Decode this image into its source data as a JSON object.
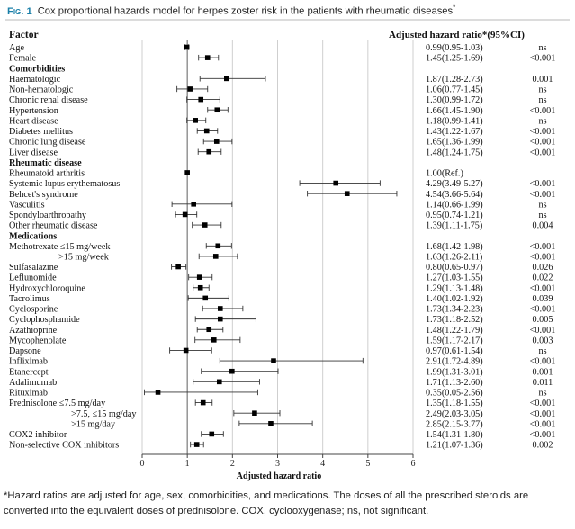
{
  "figure": {
    "label": "Fig. 1",
    "title": "Cox proportional hazards model for herpes zoster risk in the patients with rheumatic diseases",
    "title_mark": "*"
  },
  "headers": {
    "factor": "Factor",
    "hr": "Adjusted hazard ratio*(95%CI)",
    "p": "p-value"
  },
  "footnote": "*Hazard ratios are adjusted for age, sex, comorbidities, and medications. The doses of all the prescribed steroids are converted into the equivalent doses of prednisolone. COX, cyclooxygenase; ns, not significant.",
  "chart_data": {
    "type": "forest",
    "xlabel": "Adjusted hazard ratio",
    "xlim": [
      0,
      6
    ],
    "xticks": [
      0,
      1,
      2,
      3,
      4,
      5,
      6
    ],
    "reference_line": 1,
    "grid": "vertical",
    "rows": [
      {
        "label": "Age",
        "indent": 0,
        "hr": 0.99,
        "lo": 0.95,
        "hi": 1.03,
        "text": "0.99(0.95-1.03)",
        "p": "ns"
      },
      {
        "label": "Female",
        "indent": 0,
        "hr": 1.45,
        "lo": 1.25,
        "hi": 1.69,
        "text": "1.45(1.25-1.69)",
        "p": "<0.001"
      },
      {
        "label": "Comorbidities",
        "header": true
      },
      {
        "label": "Haematologic",
        "indent": 0,
        "hr": 1.87,
        "lo": 1.28,
        "hi": 2.73,
        "text": "1.87(1.28-2.73)",
        "p": "0.001"
      },
      {
        "label": "Non-hematologic",
        "indent": 0,
        "hr": 1.06,
        "lo": 0.77,
        "hi": 1.45,
        "text": "1.06(0.77-1.45)",
        "p": "ns"
      },
      {
        "label": "Chronic renal disease",
        "indent": 0,
        "hr": 1.3,
        "lo": 0.99,
        "hi": 1.72,
        "text": "1.30(0.99-1.72)",
        "p": "ns"
      },
      {
        "label": "Hypertension",
        "indent": 0,
        "hr": 1.66,
        "lo": 1.45,
        "hi": 1.9,
        "text": "1.66(1.45-1.90)",
        "p": "<0.001"
      },
      {
        "label": "Heart disease",
        "indent": 0,
        "hr": 1.18,
        "lo": 0.99,
        "hi": 1.41,
        "text": "1.18(0.99-1.41)",
        "p": "ns"
      },
      {
        "label": "Diabetes mellitus",
        "indent": 0,
        "hr": 1.43,
        "lo": 1.22,
        "hi": 1.67,
        "text": "1.43(1.22-1.67)",
        "p": "<0.001"
      },
      {
        "label": "Chronic lung disease",
        "indent": 0,
        "hr": 1.65,
        "lo": 1.36,
        "hi": 1.99,
        "text": "1.65(1.36-1.99)",
        "p": "<0.001"
      },
      {
        "label": "Liver disease",
        "indent": 0,
        "hr": 1.48,
        "lo": 1.24,
        "hi": 1.75,
        "text": "1.48(1.24-1.75)",
        "p": "<0.001"
      },
      {
        "label": "Rheumatic disease",
        "header": true
      },
      {
        "label": "Rheumatoid arthritis",
        "indent": 0,
        "hr": 1.0,
        "lo": 1.0,
        "hi": 1.0,
        "text": "1.00(Ref.)",
        "p": ""
      },
      {
        "label": "Systemic lupus erythematosus",
        "indent": 0,
        "hr": 4.29,
        "lo": 3.49,
        "hi": 5.27,
        "text": "4.29(3.49-5.27)",
        "p": "<0.001"
      },
      {
        "label": "Behcet's syndrome",
        "indent": 0,
        "hr": 4.54,
        "lo": 3.66,
        "hi": 5.64,
        "text": "4.54(3.66-5.64)",
        "p": "<0.001"
      },
      {
        "label": "Vasculitis",
        "indent": 0,
        "hr": 1.14,
        "lo": 0.66,
        "hi": 1.99,
        "text": "1.14(0.66-1.99)",
        "p": "ns"
      },
      {
        "label": "Spondyloarthropathy",
        "indent": 0,
        "hr": 0.95,
        "lo": 0.74,
        "hi": 1.21,
        "text": "0.95(0.74-1.21)",
        "p": "ns"
      },
      {
        "label": "Other rheumatic disease",
        "indent": 0,
        "hr": 1.39,
        "lo": 1.11,
        "hi": 1.75,
        "text": "1.39(1.11-1.75)",
        "p": "0.004"
      },
      {
        "label": "Medications",
        "header": true
      },
      {
        "label": "Methotrexate ≤15 mg/week",
        "indent": 0,
        "hr": 1.68,
        "lo": 1.42,
        "hi": 1.98,
        "text": "1.68(1.42-1.98)",
        "p": "<0.001"
      },
      {
        "label": ">15 mg/week",
        "indent": 1,
        "hr": 1.63,
        "lo": 1.26,
        "hi": 2.11,
        "text": "1.63(1.26-2.11)",
        "p": "<0.001"
      },
      {
        "label": "Sulfasalazine",
        "indent": 0,
        "hr": 0.8,
        "lo": 0.65,
        "hi": 0.97,
        "text": "0.80(0.65-0.97)",
        "p": "0.026"
      },
      {
        "label": "Leflunomide",
        "indent": 0,
        "hr": 1.27,
        "lo": 1.03,
        "hi": 1.55,
        "text": "1.27(1.03-1.55)",
        "p": "0.022"
      },
      {
        "label": "Hydroxychloroquine",
        "indent": 0,
        "hr": 1.29,
        "lo": 1.13,
        "hi": 1.48,
        "text": "1.29(1.13-1.48)",
        "p": "<0.001"
      },
      {
        "label": "Tacrolimus",
        "indent": 0,
        "hr": 1.4,
        "lo": 1.02,
        "hi": 1.92,
        "text": "1.40(1.02-1.92)",
        "p": "0.039"
      },
      {
        "label": "Cyclosporine",
        "indent": 0,
        "hr": 1.73,
        "lo": 1.34,
        "hi": 2.23,
        "text": "1.73(1.34-2.23)",
        "p": "<0.001"
      },
      {
        "label": "Cyclophosphamide",
        "indent": 0,
        "hr": 1.73,
        "lo": 1.18,
        "hi": 2.52,
        "text": "1.73(1.18-2.52)",
        "p": "0.005"
      },
      {
        "label": "Azathioprine",
        "indent": 0,
        "hr": 1.48,
        "lo": 1.22,
        "hi": 1.79,
        "text": "1.48(1.22-1.79)",
        "p": "<0.001"
      },
      {
        "label": "Mycophenolate",
        "indent": 0,
        "hr": 1.59,
        "lo": 1.17,
        "hi": 2.17,
        "text": "1.59(1.17-2.17)",
        "p": "0.003"
      },
      {
        "label": "Dapsone",
        "indent": 0,
        "hr": 0.97,
        "lo": 0.61,
        "hi": 1.54,
        "text": "0.97(0.61-1.54)",
        "p": "ns"
      },
      {
        "label": "Infliximab",
        "indent": 0,
        "hr": 2.91,
        "lo": 1.72,
        "hi": 4.89,
        "text": "2.91(1.72-4.89)",
        "p": "<0.001"
      },
      {
        "label": "Etanercept",
        "indent": 0,
        "hr": 1.99,
        "lo": 1.31,
        "hi": 3.01,
        "text": "1.99(1.31-3.01)",
        "p": "0.001"
      },
      {
        "label": "Adalimumab",
        "indent": 0,
        "hr": 1.71,
        "lo": 1.13,
        "hi": 2.6,
        "text": "1.71(1.13-2.60)",
        "p": "0.011"
      },
      {
        "label": "Rituximab",
        "indent": 0,
        "hr": 0.35,
        "lo": 0.05,
        "hi": 2.56,
        "text": "0.35(0.05-2.56)",
        "p": "ns"
      },
      {
        "label": "Prednisolone ≤7.5 mg/day",
        "indent": 0,
        "hr": 1.35,
        "lo": 1.18,
        "hi": 1.55,
        "text": "1.35(1.18-1.55)",
        "p": "<0.001"
      },
      {
        "label": ">7.5, ≤15 mg/day",
        "indent": 2,
        "hr": 2.49,
        "lo": 2.03,
        "hi": 3.05,
        "text": "2.49(2.03-3.05)",
        "p": "<0.001"
      },
      {
        "label": ">15 mg/day",
        "indent": 2,
        "hr": 2.85,
        "lo": 2.15,
        "hi": 3.77,
        "text": "2.85(2.15-3.77)",
        "p": "<0.001"
      },
      {
        "label": "COX2 inhibitor",
        "indent": 0,
        "hr": 1.54,
        "lo": 1.31,
        "hi": 1.8,
        "text": "1.54(1.31-1.80)",
        "p": "<0.001"
      },
      {
        "label": "Non-selective COX inhibitors",
        "indent": 0,
        "hr": 1.21,
        "lo": 1.07,
        "hi": 1.36,
        "text": "1.21(1.07-1.36)",
        "p": "0.002"
      }
    ]
  }
}
